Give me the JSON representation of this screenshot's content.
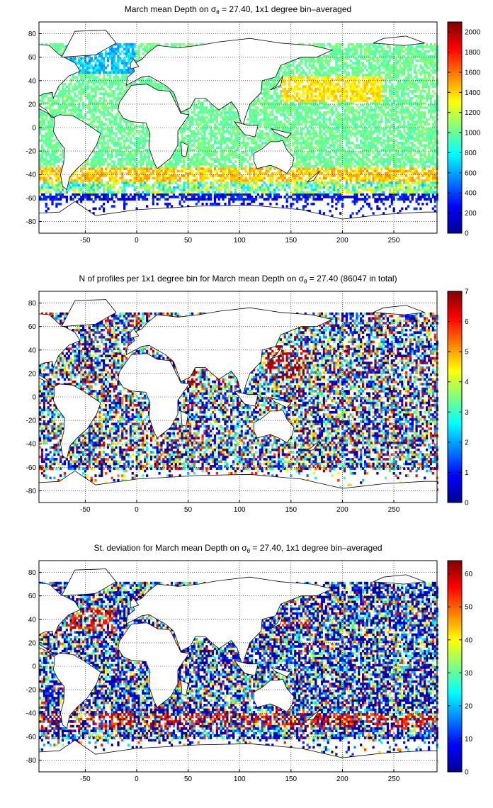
{
  "figure": {
    "colormap": "jet",
    "colormap_stops": [
      "#00008f",
      "#0000ff",
      "#0080ff",
      "#00ffff",
      "#80ff80",
      "#ffff00",
      "#ff8000",
      "#ff0000",
      "#800000"
    ],
    "land_color": "#ffffff",
    "coastline_color": "#000000",
    "grid_style": "dotted"
  },
  "chart_data": [
    {
      "type": "heatmap",
      "title_parts": {
        "prefix": "March mean Depth on ",
        "symbol": "σ",
        "subscript": "θ",
        "suffix": " = 27.40, 1x1 degree bin–averaged"
      },
      "xlim": [
        -95,
        292
      ],
      "ylim": [
        -90,
        90
      ],
      "x_ticks": [
        -50,
        0,
        50,
        100,
        150,
        200,
        250
      ],
      "y_ticks": [
        80,
        60,
        40,
        20,
        0,
        -20,
        -40,
        -60,
        -80
      ],
      "grid": true,
      "colorbar": {
        "range": [
          0,
          2100
        ],
        "ticks": [
          2000,
          1800,
          1600,
          1400,
          1200,
          1000,
          800,
          600,
          400,
          200,
          0
        ],
        "position": "right"
      }
    },
    {
      "type": "heatmap",
      "title_parts": {
        "prefix": "N of profiles per 1x1 degree bin for March mean Depth on ",
        "symbol": "σ",
        "subscript": "θ",
        "suffix": " = 27.40 (86047 in total)"
      },
      "xlim": [
        -95,
        292
      ],
      "ylim": [
        -90,
        90
      ],
      "x_ticks": [
        -50,
        0,
        50,
        100,
        150,
        200,
        250
      ],
      "y_ticks": [
        80,
        60,
        40,
        20,
        0,
        -20,
        -40,
        -60,
        -80
      ],
      "grid": true,
      "colorbar": {
        "range": [
          0,
          7
        ],
        "ticks": [
          7,
          6,
          5,
          4,
          3,
          2,
          1,
          0
        ],
        "position": "right"
      }
    },
    {
      "type": "heatmap",
      "title_parts": {
        "prefix": "St. deviation for March mean Depth on ",
        "symbol": "σ",
        "subscript": "θ",
        "suffix": " = 27.40, 1x1 degree bin–averaged"
      },
      "xlim": [
        -95,
        292
      ],
      "ylim": [
        -90,
        90
      ],
      "x_ticks": [
        -50,
        0,
        50,
        100,
        150,
        200,
        250
      ],
      "y_ticks": [
        80,
        60,
        40,
        20,
        0,
        -20,
        -40,
        -60,
        -80
      ],
      "grid": true,
      "colorbar": {
        "range": [
          0,
          64
        ],
        "ticks": [
          60,
          50,
          40,
          30,
          20,
          10,
          0
        ],
        "position": "right"
      }
    }
  ]
}
